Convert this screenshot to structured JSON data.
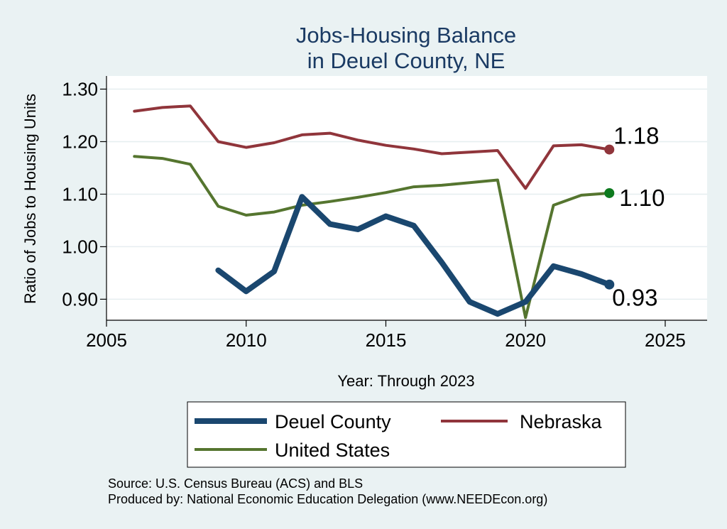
{
  "chart_data": {
    "type": "line",
    "title": [
      "Jobs-Housing Balance",
      "in Deuel County, NE"
    ],
    "xlabel": "Year: Through 2023",
    "ylabel": "Ratio of Jobs to Housing Units",
    "xlim": [
      2005,
      2026.5
    ],
    "ylim": [
      0.86,
      1.325
    ],
    "x_ticks": [
      2005,
      2010,
      2015,
      2020,
      2025
    ],
    "y_ticks": [
      0.9,
      1.0,
      1.1,
      1.2,
      1.3
    ],
    "y_tick_labels": [
      "0.90",
      "1.00",
      "1.10",
      "1.20",
      "1.30"
    ],
    "grid": true,
    "legend_position": "bottom",
    "series": [
      {
        "name": "Deuel County",
        "color": "#1a476f",
        "x": [
          2009,
          2010,
          2011,
          2012,
          2013,
          2014,
          2015,
          2016,
          2017,
          2018,
          2019,
          2020,
          2021,
          2022,
          2023
        ],
        "values": [
          0.955,
          0.915,
          0.953,
          1.095,
          1.043,
          1.033,
          1.058,
          1.04,
          0.97,
          0.895,
          0.872,
          0.895,
          0.963,
          0.948,
          0.928
        ],
        "end_label": "0.93"
      },
      {
        "name": "Nebraska",
        "color": "#90353b",
        "x": [
          2006,
          2007,
          2008,
          2009,
          2010,
          2011,
          2012,
          2013,
          2014,
          2015,
          2016,
          2017,
          2018,
          2019,
          2020,
          2021,
          2022,
          2023
        ],
        "values": [
          1.258,
          1.265,
          1.268,
          1.2,
          1.189,
          1.198,
          1.213,
          1.216,
          1.203,
          1.193,
          1.186,
          1.177,
          1.18,
          1.183,
          1.111,
          1.192,
          1.194,
          1.185
        ],
        "end_label": "1.18"
      },
      {
        "name": "United States",
        "color": "#55752f",
        "x": [
          2006,
          2007,
          2008,
          2009,
          2010,
          2011,
          2012,
          2013,
          2014,
          2015,
          2016,
          2017,
          2018,
          2019,
          2020,
          2021,
          2022,
          2023
        ],
        "values": [
          1.172,
          1.168,
          1.157,
          1.077,
          1.06,
          1.066,
          1.079,
          1.086,
          1.094,
          1.103,
          1.114,
          1.117,
          1.122,
          1.127,
          0.865,
          1.079,
          1.098,
          1.102
        ],
        "end_label": "1.10",
        "end_marker_color": "#0d7a1e"
      }
    ],
    "source_notes": [
      "Source: U.S. Census Bureau (ACS) and BLS",
      "Produced by: National Economic Education Delegation (www.NEEDEcon.org)"
    ]
  }
}
